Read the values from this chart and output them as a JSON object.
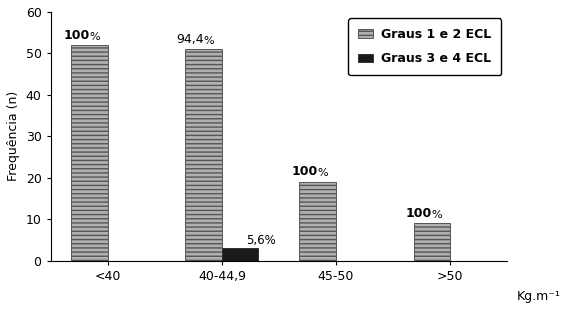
{
  "categories": [
    "<40",
    "40-44,9",
    "45-50",
    ">50"
  ],
  "graus12_values": [
    52,
    51,
    19,
    9
  ],
  "graus34_values": [
    0,
    3,
    0,
    0
  ],
  "graus12_labels": [
    "100%",
    "94,4%",
    "100%",
    "100%"
  ],
  "graus34_labels": [
    "",
    "5,6%",
    "",
    ""
  ],
  "graus12_label_bold": [
    true,
    false,
    true,
    true
  ],
  "ylabel": "Frequência (n)",
  "xlabel": "Kg.m⁻¹",
  "ylim": [
    0,
    60
  ],
  "yticks": [
    0,
    10,
    20,
    30,
    40,
    50,
    60
  ],
  "legend_gray": "Graus 1 e 2 ECL",
  "legend_dark": "Graus 3 e 4 ECL",
  "bar_color_gray": "#b0b0b0",
  "bar_color_dark": "#1a1a1a",
  "bar_width": 0.32,
  "background_color": "#ffffff",
  "axis_fontsize": 9,
  "tick_fontsize": 9,
  "legend_fontsize": 9,
  "label_fontsize": 9
}
